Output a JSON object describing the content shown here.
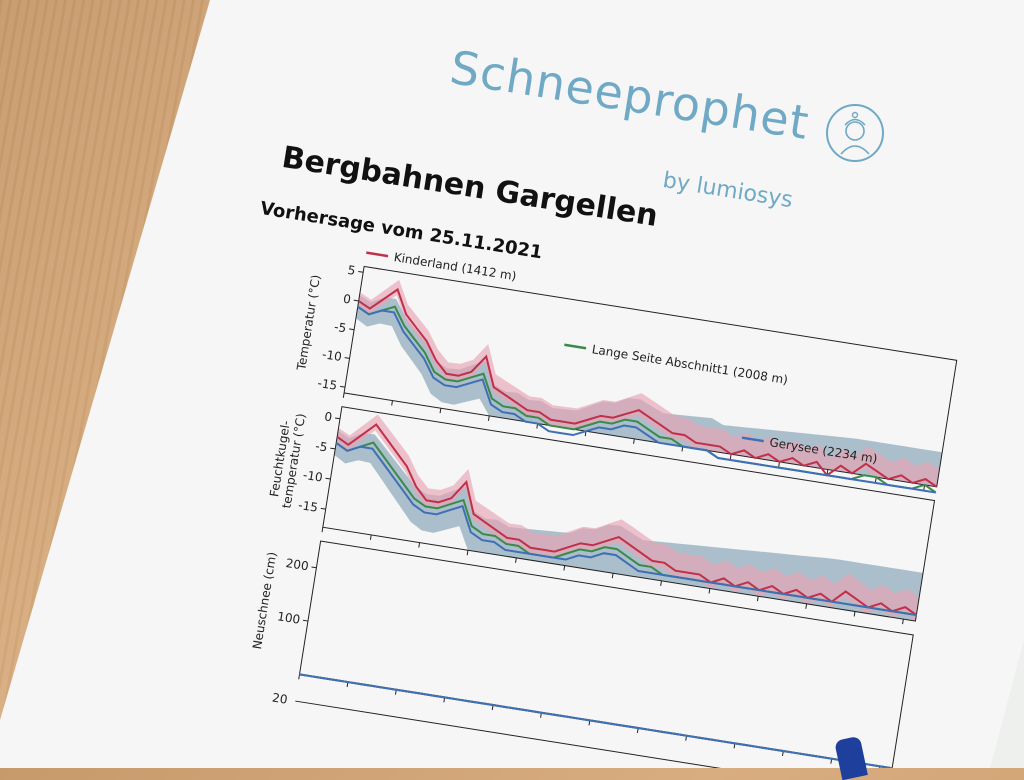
{
  "brand": {
    "name": "Schneeprophet",
    "sub": "by lumiosys"
  },
  "header": {
    "title": "Bergbahnen Gargellen",
    "subtitle": "Vorhersage vom 25.11.2021"
  },
  "colors": {
    "kinderland": "#c0304a",
    "lange_seite": "#3a8a4a",
    "gerysee": "#3f6fb5",
    "band_red": "#e8a4b3",
    "band_blue": "#6d8fa8",
    "brand": "#6fa9c6"
  },
  "chart_data": [
    {
      "type": "line",
      "ylabel": "Temperatur (°C)",
      "ylim": [
        -16,
        6
      ],
      "yticks": [
        5,
        0,
        -5,
        -10,
        -15
      ],
      "x": [
        0,
        1,
        2,
        3,
        4,
        5,
        6,
        7,
        8,
        9,
        10,
        11,
        12,
        13,
        14,
        15,
        16,
        17,
        18,
        19,
        20,
        21,
        22,
        23,
        24,
        25,
        26,
        27,
        28,
        29,
        30,
        31,
        32,
        33,
        34,
        35,
        36,
        37,
        38,
        39,
        40,
        41,
        42,
        43,
        44,
        45,
        46,
        47,
        48,
        49
      ],
      "series": [
        {
          "name": "Kinderland (1412 m)",
          "values": [
            0,
            -1,
            1,
            3,
            -1,
            -3,
            -5,
            -8,
            -10,
            -10,
            -9,
            -6,
            -11,
            -12,
            -13,
            -14,
            -14,
            -15,
            -15,
            -15,
            -14,
            -13,
            -13,
            -12,
            -11,
            -12,
            -13,
            -14,
            -14,
            -15,
            -15,
            -15,
            -16,
            -15,
            -16,
            -15,
            -16,
            -15,
            -16,
            -15,
            -17,
            -15,
            -16,
            -14,
            -15,
            -16,
            -15,
            -16,
            -15,
            -16
          ]
        },
        {
          "name": "Lange Seite Abschnitt1 (2008 m)",
          "values": [
            -1,
            -2,
            -1,
            0,
            -3,
            -5,
            -7,
            -10,
            -11,
            -11,
            -10,
            -9,
            -13,
            -14,
            -14,
            -15,
            -15,
            -16,
            -16,
            -16,
            -15,
            -14,
            -14,
            -13,
            -13,
            -14,
            -15,
            -15,
            -16,
            -16,
            -16,
            -17,
            -17,
            -17,
            -17,
            -17,
            -17,
            -17,
            -17,
            -17,
            -17,
            -17,
            -17,
            -16,
            -16,
            -17,
            -17,
            -17,
            -16,
            -17
          ]
        },
        {
          "name": "Gerysee (2234 m)",
          "values": [
            -1,
            -2,
            -1,
            -1,
            -4,
            -6,
            -8,
            -11,
            -12,
            -12,
            -11,
            -10,
            -14,
            -15,
            -15,
            -16,
            -16,
            -17,
            -17,
            -17,
            -16,
            -15,
            -15,
            -14,
            -14,
            -15,
            -16,
            -16,
            -16,
            -16,
            -16,
            -17,
            -17,
            -17,
            -17,
            -17,
            -17,
            -17,
            -17,
            -17,
            -17,
            -17,
            -17,
            -17,
            -17,
            -17,
            -17,
            -17,
            -17,
            -17
          ]
        }
      ]
    },
    {
      "type": "line",
      "ylabel": "Feuchtkugel-\ntemperatur (°C)",
      "ylim": [
        -18,
        2
      ],
      "yticks": [
        0,
        -5,
        -10,
        -15
      ],
      "x": [
        0,
        1,
        2,
        3,
        4,
        5,
        6,
        7,
        8,
        9,
        10,
        11,
        12,
        13,
        14,
        15,
        16,
        17,
        18,
        19,
        20,
        21,
        22,
        23,
        24,
        25,
        26,
        27,
        28,
        29,
        30,
        31,
        32,
        33,
        34,
        35,
        36,
        37,
        38,
        39,
        40,
        41,
        42,
        43,
        44,
        45,
        46,
        47,
        48,
        49
      ],
      "series": [
        {
          "name": "Kinderland (1412 m)",
          "values": [
            -3,
            -4,
            -2,
            0,
            -2,
            -4,
            -6,
            -9,
            -11,
            -11,
            -10,
            -7,
            -12,
            -13,
            -14,
            -15,
            -15,
            -16,
            -16,
            -16,
            -15,
            -14,
            -14,
            -13,
            -12,
            -13,
            -14,
            -15,
            -15,
            -16,
            -16,
            -16,
            -17,
            -16,
            -17,
            -16,
            -17,
            -16,
            -17,
            -16,
            -17,
            -16,
            -17,
            -15,
            -16,
            -17,
            -16,
            -17,
            -16,
            -17
          ]
        },
        {
          "name": "Lange Seite Abschnitt1 (2008 m)",
          "values": [
            -4,
            -5,
            -4,
            -3,
            -5,
            -7,
            -9,
            -11,
            -12,
            -12,
            -11,
            -10,
            -14,
            -15,
            -15,
            -16,
            -16,
            -17,
            -17,
            -17,
            -16,
            -15,
            -15,
            -14,
            -14,
            -15,
            -16,
            -16,
            -17,
            -17,
            -17,
            -17,
            -17,
            -17,
            -17,
            -17,
            -17,
            -17,
            -17,
            -17,
            -17,
            -17,
            -17,
            -17,
            -17,
            -17,
            -17,
            -17,
            -17,
            -17
          ]
        },
        {
          "name": "Gerysee (2234 m)",
          "values": [
            -4,
            -5,
            -4,
            -4,
            -6,
            -8,
            -10,
            -12,
            -13,
            -13,
            -12,
            -11,
            -15,
            -16,
            -16,
            -17,
            -17,
            -17,
            -17,
            -17,
            -17,
            -16,
            -16,
            -15,
            -15,
            -16,
            -17,
            -17,
            -17,
            -17,
            -17,
            -17,
            -17,
            -17,
            -17,
            -17,
            -17,
            -17,
            -17,
            -17,
            -17,
            -17,
            -17,
            -17,
            -17,
            -17,
            -17,
            -17,
            -17,
            -17
          ]
        }
      ]
    },
    {
      "type": "line",
      "ylabel": "Neuschnee (cm)",
      "ylim": [
        0,
        250
      ],
      "yticks": [
        200,
        100
      ],
      "x": [
        0,
        1,
        2,
        3,
        4,
        5,
        6,
        7,
        8,
        9,
        10,
        11,
        12,
        13,
        14,
        15,
        16,
        17,
        18,
        19,
        20,
        21,
        22,
        23,
        24,
        25,
        26,
        27,
        28,
        29,
        30,
        31,
        32,
        33,
        34,
        35,
        36,
        37,
        38,
        39,
        40,
        41,
        42,
        43,
        44,
        45,
        46,
        47,
        48,
        49
      ],
      "series": [
        {
          "name": "Kinderland (1412 m)",
          "values": [
            0,
            0,
            0,
            0,
            0,
            0,
            0,
            0,
            0,
            0,
            0,
            0,
            0,
            0,
            0,
            0,
            0,
            0,
            0,
            0,
            0,
            0,
            0,
            0,
            0,
            0,
            0,
            0,
            0,
            0,
            0,
            0,
            0,
            0,
            0,
            0,
            0,
            0,
            0,
            0,
            0,
            0,
            0,
            0,
            0,
            0,
            0,
            0,
            0,
            0
          ]
        },
        {
          "name": "Lange Seite Abschnitt1 (2008 m)",
          "values": [
            0,
            0,
            0,
            0,
            0,
            0,
            0,
            0,
            0,
            0,
            0,
            0,
            0,
            0,
            0,
            0,
            0,
            0,
            0,
            0,
            0,
            0,
            0,
            0,
            0,
            0,
            0,
            0,
            0,
            0,
            0,
            0,
            0,
            0,
            0,
            0,
            0,
            0,
            0,
            0,
            0,
            0,
            0,
            0,
            0,
            0,
            0,
            0,
            0,
            0
          ]
        },
        {
          "name": "Gerysee (2234 m)",
          "values": [
            0,
            0,
            0,
            0,
            0,
            0,
            0,
            0,
            0,
            0,
            0,
            0,
            0,
            0,
            0,
            0,
            0,
            0,
            0,
            0,
            0,
            0,
            0,
            0,
            0,
            0,
            0,
            0,
            0,
            0,
            0,
            0,
            0,
            0,
            0,
            0,
            0,
            0,
            0,
            0,
            0,
            0,
            0,
            0,
            0,
            0,
            0,
            0,
            0,
            0
          ]
        }
      ]
    }
  ],
  "partial_axis": {
    "tick": "20"
  }
}
